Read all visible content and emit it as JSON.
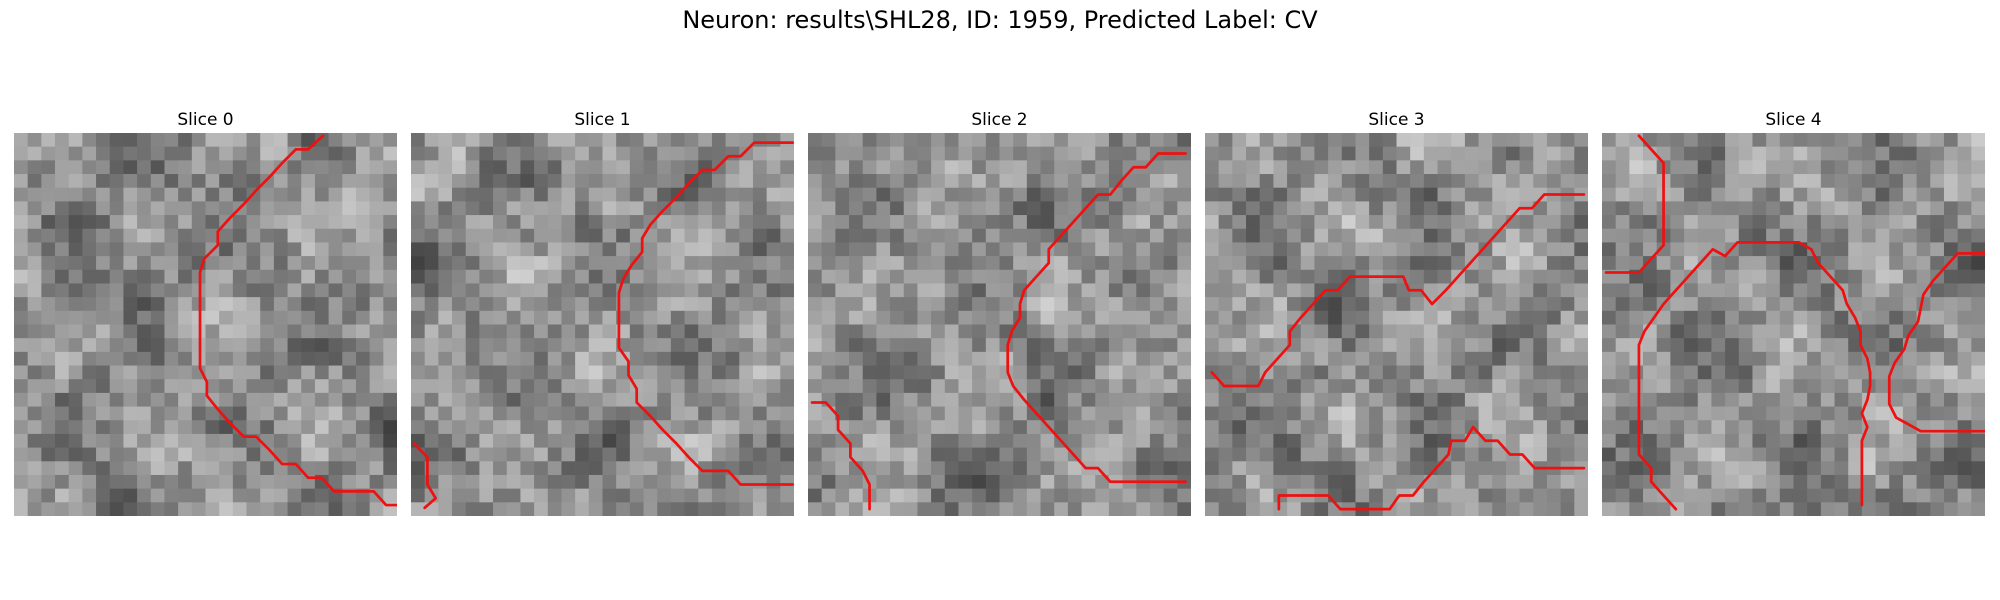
{
  "figure": {
    "title": "Neuron: results\\SHL28, ID: 1959, Predicted Label: CV"
  },
  "colors": {
    "contour": "#ee1111",
    "background": "#ffffff"
  },
  "grid_size": 28,
  "slices": [
    {
      "title": "Slice 0",
      "contours": [
        [
          [
            22.6,
            0.2
          ],
          [
            21.5,
            1.2
          ],
          [
            20.6,
            1.2
          ],
          [
            19.6,
            2.2
          ],
          [
            18.7,
            3.2
          ],
          [
            17.7,
            4.2
          ],
          [
            16.8,
            5.2
          ],
          [
            15.8,
            6.2
          ],
          [
            14.9,
            7.2
          ],
          [
            14.9,
            8.2
          ],
          [
            13.9,
            9.2
          ],
          [
            13.6,
            10.2
          ],
          [
            13.6,
            11.2
          ],
          [
            13.6,
            12.2
          ],
          [
            13.6,
            13.2
          ],
          [
            13.6,
            14.2
          ],
          [
            13.6,
            15.2
          ],
          [
            13.6,
            16.2
          ],
          [
            13.6,
            17.2
          ],
          [
            14.1,
            18.2
          ],
          [
            14.1,
            19.2
          ],
          [
            14.9,
            20.2
          ],
          [
            15.8,
            21.2
          ],
          [
            16.8,
            22.2
          ],
          [
            17.7,
            22.2
          ],
          [
            18.7,
            23.2
          ],
          [
            19.6,
            24.2
          ],
          [
            20.6,
            24.2
          ],
          [
            21.5,
            25.2
          ],
          [
            22.5,
            25.2
          ],
          [
            23.4,
            26.2
          ],
          [
            24.4,
            26.2
          ],
          [
            25.3,
            26.2
          ],
          [
            26.3,
            26.2
          ],
          [
            27.2,
            27.2
          ],
          [
            28,
            27.2
          ]
        ]
      ]
    },
    {
      "title": "Slice 1",
      "contours": [
        [
          [
            27.9,
            0.7
          ],
          [
            26.9,
            0.7
          ],
          [
            25.9,
            0.7
          ],
          [
            25.1,
            0.7
          ],
          [
            24.1,
            1.7
          ],
          [
            23.2,
            1.7
          ],
          [
            22.2,
            2.7
          ],
          [
            21.3,
            2.7
          ],
          [
            20.3,
            3.7
          ],
          [
            19.4,
            4.7
          ],
          [
            18.4,
            5.7
          ],
          [
            17.5,
            6.7
          ],
          [
            16.9,
            7.7
          ],
          [
            16.9,
            8.7
          ],
          [
            16.1,
            9.7
          ],
          [
            15.5,
            10.7
          ],
          [
            15.2,
            11.7
          ],
          [
            15.2,
            12.7
          ],
          [
            15.2,
            13.7
          ],
          [
            15.2,
            14.7
          ],
          [
            15.2,
            15.7
          ],
          [
            15.9,
            16.7
          ],
          [
            15.9,
            17.7
          ],
          [
            16.5,
            18.7
          ],
          [
            16.5,
            19.7
          ],
          [
            17.5,
            20.7
          ],
          [
            18.4,
            21.7
          ],
          [
            19.4,
            22.7
          ],
          [
            20.3,
            23.7
          ],
          [
            21.3,
            24.7
          ],
          [
            22.2,
            24.7
          ],
          [
            23.2,
            24.7
          ],
          [
            24.1,
            25.7
          ],
          [
            25.1,
            25.7
          ],
          [
            26,
            25.7
          ],
          [
            27,
            25.7
          ],
          [
            27.9,
            25.7
          ]
        ],
        [
          [
            0.2,
            22.7
          ],
          [
            1.2,
            23.7
          ],
          [
            1.2,
            24.7
          ],
          [
            1.2,
            25.7
          ],
          [
            1.8,
            26.7
          ],
          [
            1,
            27.4
          ]
        ]
      ]
    },
    {
      "title": "Slice 2",
      "contours": [
        [
          [
            27.6,
            1.5
          ],
          [
            26.6,
            1.5
          ],
          [
            25.6,
            1.5
          ],
          [
            24.7,
            2.5
          ],
          [
            23.8,
            2.5
          ],
          [
            22.9,
            3.5
          ],
          [
            22.1,
            4.5
          ],
          [
            21.2,
            4.5
          ],
          [
            20.3,
            5.5
          ],
          [
            19.4,
            6.5
          ],
          [
            18.5,
            7.5
          ],
          [
            17.6,
            8.5
          ],
          [
            17.6,
            9.5
          ],
          [
            16.7,
            10.5
          ],
          [
            15.8,
            11.5
          ],
          [
            15.5,
            12.5
          ],
          [
            15.5,
            13.5
          ],
          [
            14.9,
            14.5
          ],
          [
            14.6,
            15.5
          ],
          [
            14.6,
            16.5
          ],
          [
            14.6,
            17.5
          ],
          [
            15,
            18.5
          ],
          [
            15.8,
            19.5
          ],
          [
            16.7,
            20.5
          ],
          [
            17.6,
            21.5
          ],
          [
            18.5,
            22.5
          ],
          [
            19.4,
            23.5
          ],
          [
            20.3,
            24.5
          ],
          [
            21.2,
            24.5
          ],
          [
            22.1,
            25.5
          ],
          [
            23,
            25.5
          ],
          [
            23.9,
            25.5
          ],
          [
            24.8,
            25.5
          ],
          [
            25.7,
            25.5
          ],
          [
            26.6,
            25.5
          ],
          [
            27.6,
            25.5
          ]
        ],
        [
          [
            0.3,
            19.7
          ],
          [
            1.3,
            19.7
          ],
          [
            2.2,
            20.7
          ],
          [
            2.2,
            21.7
          ],
          [
            3.1,
            22.7
          ],
          [
            3.1,
            23.7
          ],
          [
            4,
            24.7
          ],
          [
            4.5,
            25.7
          ],
          [
            4.5,
            26.7
          ],
          [
            4.5,
            27.5
          ]
        ]
      ]
    },
    {
      "title": "Slice 3",
      "contours": [
        [
          [
            27.7,
            4.5
          ],
          [
            26.7,
            4.5
          ],
          [
            25.7,
            4.5
          ],
          [
            24.8,
            4.5
          ],
          [
            23.9,
            5.5
          ],
          [
            23,
            5.5
          ],
          [
            22.1,
            6.5
          ],
          [
            21.2,
            7.5
          ],
          [
            20.3,
            8.5
          ],
          [
            19.4,
            9.5
          ],
          [
            18.5,
            10.5
          ],
          [
            17.6,
            11.5
          ],
          [
            16.6,
            12.5
          ],
          [
            15.8,
            11.5
          ],
          [
            14.9,
            11.5
          ],
          [
            14.5,
            10.5
          ],
          [
            13.3,
            10.5
          ],
          [
            12.4,
            10.5
          ],
          [
            11.5,
            10.5
          ],
          [
            10.6,
            10.5
          ],
          [
            9.7,
            11.5
          ],
          [
            8.8,
            11.5
          ],
          [
            7.9,
            12.5
          ],
          [
            7,
            13.5
          ],
          [
            6.2,
            14.5
          ],
          [
            6.2,
            15.5
          ],
          [
            5.3,
            16.5
          ],
          [
            4.4,
            17.5
          ],
          [
            3.9,
            18.5
          ],
          [
            2.8,
            18.5
          ],
          [
            1.9,
            18.5
          ],
          [
            1.4,
            18.5
          ],
          [
            0.5,
            17.5
          ]
        ],
        [
          [
            5.4,
            27.5
          ],
          [
            5.4,
            26.5
          ],
          [
            6.3,
            26.5
          ],
          [
            7.2,
            26.5
          ],
          [
            8.1,
            26.5
          ],
          [
            9,
            26.5
          ],
          [
            9.9,
            27.5
          ],
          [
            10.8,
            27.5
          ],
          [
            11.7,
            27.5
          ],
          [
            12.6,
            27.5
          ],
          [
            13.5,
            27.5
          ],
          [
            14.2,
            26.5
          ],
          [
            15.2,
            26.5
          ],
          [
            16,
            25.5
          ],
          [
            16.9,
            24.5
          ],
          [
            17.8,
            23.5
          ],
          [
            18,
            22.5
          ],
          [
            19,
            22.5
          ],
          [
            19.6,
            21.5
          ],
          [
            20.5,
            22.5
          ],
          [
            21.4,
            22.5
          ],
          [
            22.3,
            23.5
          ],
          [
            23.2,
            23.5
          ],
          [
            24.1,
            24.5
          ],
          [
            25,
            24.5
          ],
          [
            25.9,
            24.5
          ],
          [
            26.8,
            24.5
          ],
          [
            27.7,
            24.5
          ]
        ]
      ]
    },
    {
      "title": "Slice 4",
      "contours": [
        [
          [
            2.7,
            0.2
          ],
          [
            3.6,
            1.2
          ],
          [
            4.5,
            2.2
          ],
          [
            4.5,
            3.2
          ],
          [
            4.5,
            4.2
          ],
          [
            4.5,
            5.2
          ],
          [
            4.5,
            6.2
          ],
          [
            4.5,
            7.2
          ],
          [
            4.5,
            8.2
          ],
          [
            3.6,
            9.2
          ],
          [
            2.7,
            10.2
          ],
          [
            1.8,
            10.2
          ],
          [
            0.3,
            10.2
          ]
        ],
        [
          [
            5.4,
            27.5
          ],
          [
            4.5,
            26.5
          ],
          [
            3.6,
            25.5
          ],
          [
            3.6,
            24.5
          ],
          [
            2.7,
            23.5
          ],
          [
            2.7,
            22.5
          ],
          [
            2.7,
            21.5
          ],
          [
            2.7,
            20.5
          ],
          [
            2.7,
            19.5
          ],
          [
            2.7,
            18.5
          ],
          [
            2.7,
            17.5
          ],
          [
            2.7,
            16.5
          ],
          [
            2.7,
            15.5
          ],
          [
            3.1,
            14.5
          ],
          [
            3.8,
            13.5
          ],
          [
            4.5,
            12.5
          ],
          [
            5.4,
            11.5
          ],
          [
            6.3,
            10.5
          ],
          [
            7.2,
            9.5
          ],
          [
            8.1,
            8.5
          ],
          [
            9,
            9
          ],
          [
            9.9,
            8
          ],
          [
            10.8,
            8
          ],
          [
            11.7,
            8
          ],
          [
            12.6,
            8
          ],
          [
            13.5,
            8
          ],
          [
            14.4,
            8
          ],
          [
            15.3,
            8.5
          ],
          [
            15.8,
            9.5
          ],
          [
            16.7,
            10.5
          ],
          [
            17.6,
            11.5
          ],
          [
            17.9,
            12.5
          ],
          [
            18.5,
            13.5
          ],
          [
            18.9,
            14.5
          ],
          [
            18.9,
            15.5
          ],
          [
            19.4,
            16.5
          ],
          [
            19.6,
            17.5
          ],
          [
            19.6,
            18.5
          ],
          [
            19.4,
            19.5
          ],
          [
            19,
            20.5
          ],
          [
            19.4,
            21.5
          ],
          [
            19,
            22.5
          ],
          [
            19,
            23.5
          ],
          [
            19,
            24.5
          ],
          [
            19,
            25.5
          ],
          [
            19,
            26.5
          ],
          [
            19,
            27.2
          ]
        ],
        [
          [
            28,
            8.8
          ],
          [
            26.9,
            8.8
          ],
          [
            26,
            8.8
          ],
          [
            25.1,
            9.8
          ],
          [
            24.2,
            10.8
          ],
          [
            23.5,
            11.8
          ],
          [
            23.3,
            12.8
          ],
          [
            23.1,
            13.8
          ],
          [
            22.4,
            14.8
          ],
          [
            22.1,
            15.8
          ],
          [
            21.4,
            16.8
          ],
          [
            21,
            17.8
          ],
          [
            21,
            18.8
          ],
          [
            21,
            19.8
          ],
          [
            21.5,
            20.8
          ],
          [
            22.4,
            21.3
          ],
          [
            23.3,
            21.8
          ],
          [
            24.2,
            21.8
          ],
          [
            25.1,
            21.8
          ],
          [
            26,
            21.8
          ],
          [
            26.9,
            21.8
          ],
          [
            28,
            21.8
          ]
        ]
      ]
    }
  ]
}
